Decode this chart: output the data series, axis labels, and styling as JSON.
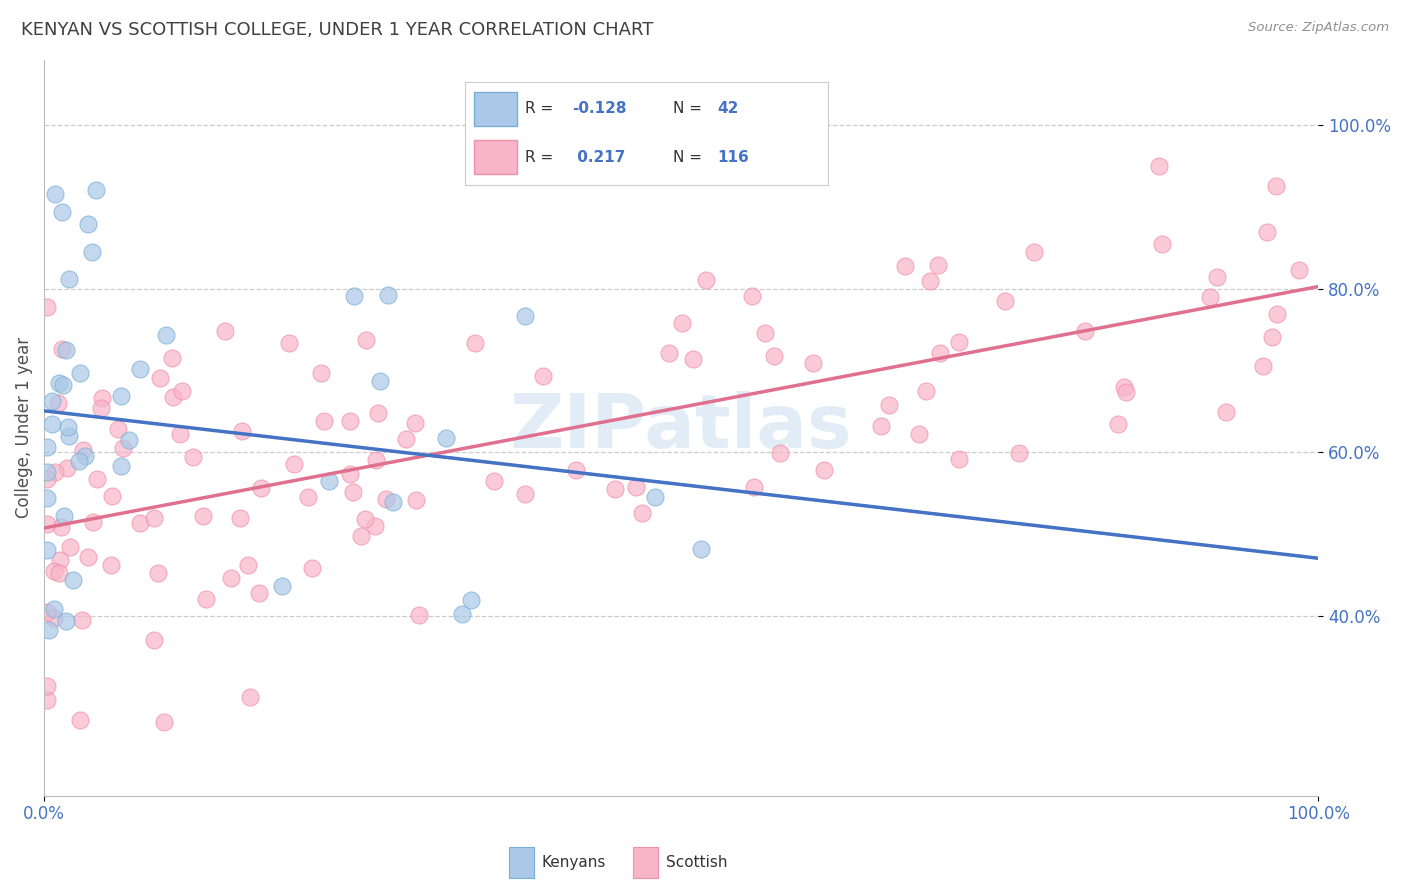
{
  "title": "KENYAN VS SCOTTISH COLLEGE, UNDER 1 YEAR CORRELATION CHART",
  "source": "Source: ZipAtlas.com",
  "ylabel": "College, Under 1 year",
  "kenyan_R": -0.128,
  "kenyan_N": 42,
  "scottish_R": 0.217,
  "scottish_N": 116,
  "kenyan_color_face": "#aac8e8",
  "kenyan_color_edge": "#7aafd4",
  "scottish_color_face": "#f8b4c8",
  "scottish_color_edge": "#f090a8",
  "kenyan_trend_color": "#4472c4",
  "scottish_trend_color": "#e07090",
  "background_color": "#ffffff",
  "grid_color": "#cccccc",
  "title_color": "#404040",
  "legend_value_color": "#4472c4",
  "watermark_color": "#cde0f0",
  "xlim": [
    0,
    100
  ],
  "ylim": [
    18,
    108
  ],
  "xtick_positions": [
    0,
    100
  ],
  "xtick_labels": [
    "0.0%",
    "100.0%"
  ],
  "ytick_positions": [
    40,
    60,
    80,
    100
  ],
  "ytick_labels": [
    "40.0%",
    "60.0%",
    "80.0%",
    "100.0%"
  ]
}
